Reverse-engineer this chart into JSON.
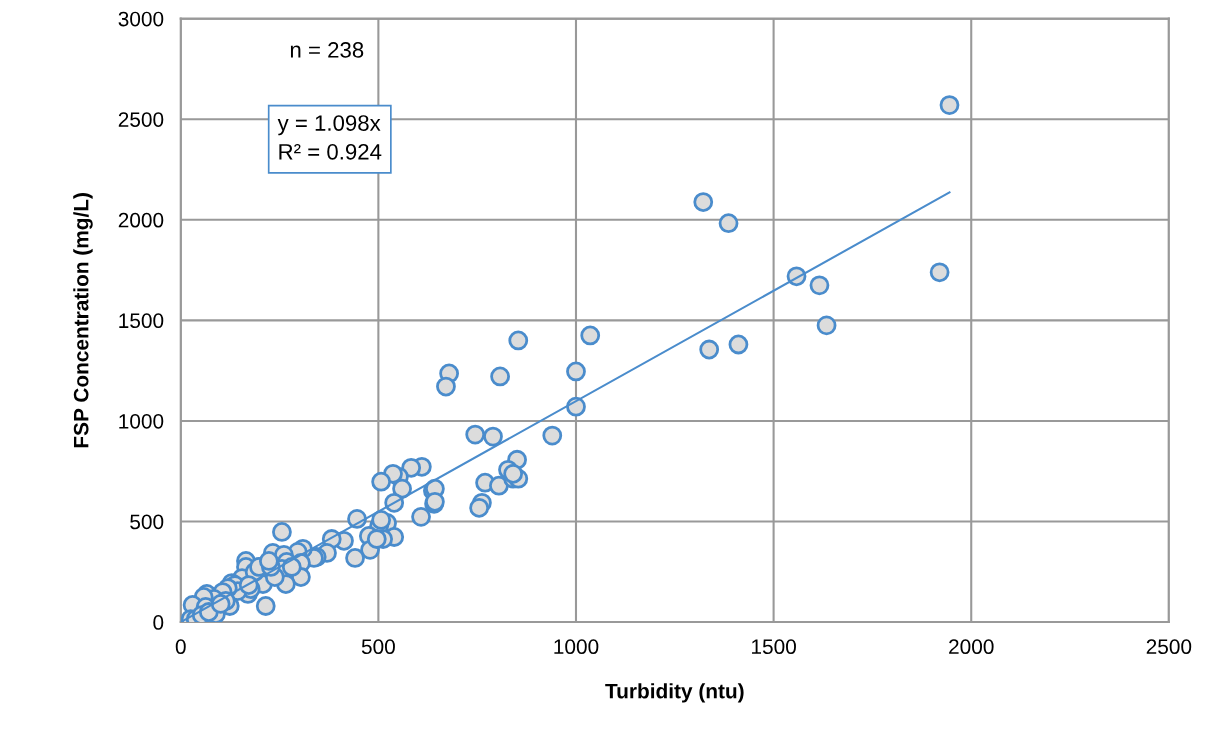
{
  "chart_data": {
    "type": "scatter",
    "xlabel": "Turbidity (ntu)",
    "ylabel": "FSP Concentration (mg/L)",
    "xlim": [
      0,
      2500
    ],
    "xticks": [
      0,
      500,
      1000,
      1500,
      2000,
      2500
    ],
    "ylim": [
      0,
      3000
    ],
    "yticks": [
      0,
      500,
      1000,
      1500,
      2000,
      2500,
      3000
    ],
    "grid": true,
    "marker": "circle",
    "annotations": [
      "n = 238",
      "y = 1.098x\nR² = 0.924"
    ],
    "series": [
      {
        "color": "#4a8ccc",
        "x": [
          1945,
          1322,
          1386,
          1558,
          1616,
          1920,
          1634,
          1411,
          1337,
          1036,
          854,
          1000,
          808,
          679,
          671,
          1000,
          940,
          745,
          790,
          851,
          828,
          770,
          805,
          841,
          854,
          841,
          762,
          755,
          610,
          583,
          552,
          537,
          560,
          638,
          643,
          641,
          643,
          608,
          507,
          540,
          446,
          522,
          502,
          507,
          476,
          479,
          540,
          512,
          496,
          441,
          413,
          382,
          370,
          344,
          337,
          309,
          296,
          304,
          304,
          256,
          233,
          261,
          268,
          256,
          266,
          215,
          165,
          165,
          208,
          155,
          170,
          177,
          129,
          137,
          144,
          119,
          124,
          106,
          66,
          84,
          58,
          30,
          63,
          89,
          25,
          38,
          53,
          71,
          238,
          187,
          198,
          228,
          281,
          223,
          172,
          114,
          101
        ],
        "values": [
          2570,
          2088,
          1983,
          1719,
          1674,
          1739,
          1475,
          1380,
          1355,
          1425,
          1400,
          1246,
          1221,
          1236,
          1171,
          1071,
          927,
          932,
          922,
          807,
          757,
          693,
          678,
          713,
          713,
          737,
          593,
          568,
          772,
          767,
          722,
          737,
          663,
          653,
          663,
          588,
          598,
          523,
          698,
          593,
          513,
          493,
          478,
          508,
          428,
          359,
          423,
          413,
          413,
          319,
          404,
          413,
          344,
          324,
          319,
          364,
          349,
          294,
          224,
          448,
          344,
          334,
          299,
          264,
          189,
          80,
          304,
          274,
          189,
          219,
          140,
          164,
          194,
          184,
          154,
          169,
          80,
          149,
          140,
          115,
          125,
          85,
          75,
          40,
          15,
          15,
          35,
          50,
          224,
          249,
          274,
          274,
          274,
          304,
          184,
          105,
          90
        ]
      },
      {
        "type": "line",
        "color": "#4a8ccc",
        "marker": "none",
        "x": [
          0,
          1945
        ],
        "values": [
          0,
          2136
        ]
      }
    ]
  }
}
